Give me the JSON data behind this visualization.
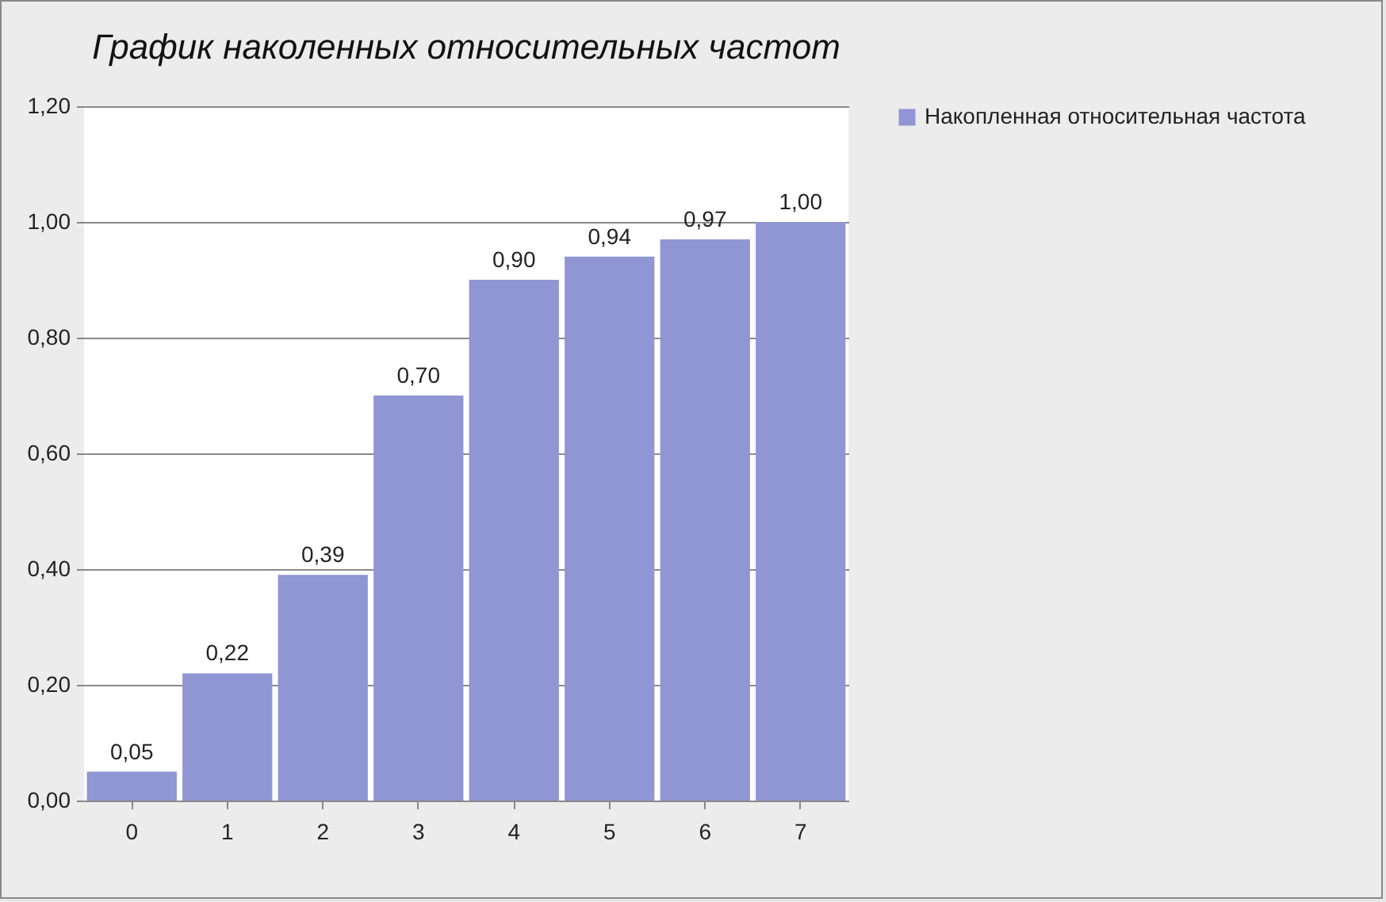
{
  "chart_data": {
    "type": "bar",
    "title": "График  наколенных  относительных  частот",
    "categories": [
      "0",
      "1",
      "2",
      "3",
      "4",
      "5",
      "6",
      "7"
    ],
    "series": [
      {
        "name": "Накопленная относительная частота",
        "color": "#9095d4",
        "values": [
          0.05,
          0.22,
          0.39,
          0.7,
          0.9,
          0.94,
          0.97,
          1.0
        ],
        "value_labels": [
          "0,05",
          "0,22",
          "0,39",
          "0,70",
          "0,90",
          "0,94",
          "0,97",
          "1,00"
        ]
      }
    ],
    "ylim": [
      0,
      1.2
    ],
    "yticks": [
      {
        "value": 0,
        "label": "0,00"
      },
      {
        "value": 0.2,
        "label": "0,20"
      },
      {
        "value": 0.4,
        "label": "0,40"
      },
      {
        "value": 0.6,
        "label": "0,60"
      },
      {
        "value": 0.8,
        "label": "0,80"
      },
      {
        "value": 1.0,
        "label": "1,00"
      },
      {
        "value": 1.2,
        "label": "1,20"
      }
    ],
    "grid": "y",
    "legend": "right"
  }
}
